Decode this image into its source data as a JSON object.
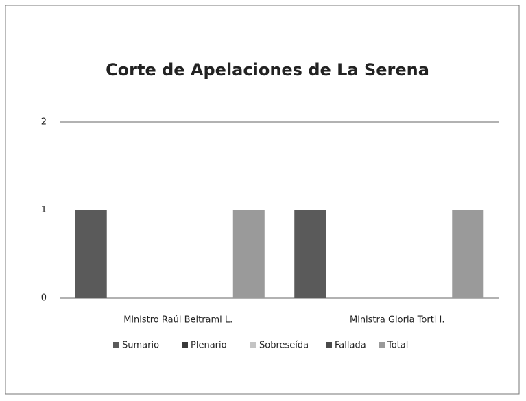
{
  "chart_data": {
    "type": "bar",
    "title": "Corte de Apelaciones de La Serena",
    "categories": [
      "Ministro Raúl Beltrami L.",
      "Ministra Gloria Torti I."
    ],
    "series": [
      {
        "name": "Sumario",
        "color": "#5a5a5a",
        "values": [
          1,
          1
        ]
      },
      {
        "name": "Plenario",
        "color": "#3a3a3a",
        "values": [
          0,
          0
        ]
      },
      {
        "name": "Sobreseída",
        "color": "#c4c4c4",
        "values": [
          0,
          0
        ]
      },
      {
        "name": "Fallada",
        "color": "#4a4a4a",
        "values": [
          0,
          0
        ]
      },
      {
        "name": "Total",
        "color": "#9a9a9a",
        "values": [
          1,
          1
        ]
      }
    ],
    "ylim": [
      0,
      2
    ],
    "yticks": [
      0,
      1,
      2
    ],
    "grid": true,
    "legend": "bottom"
  }
}
